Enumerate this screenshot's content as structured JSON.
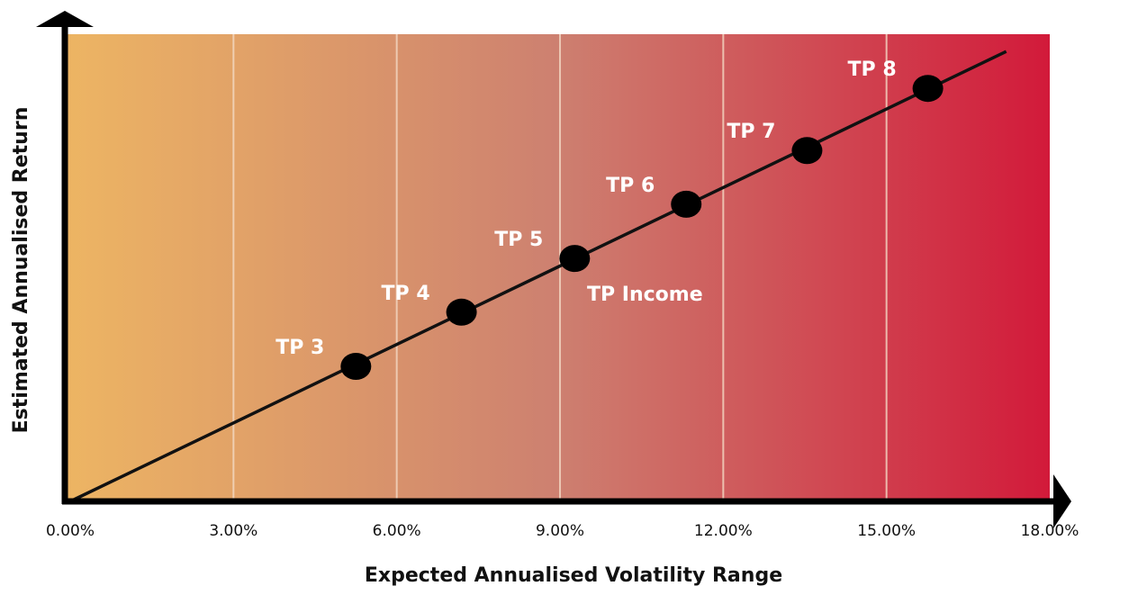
{
  "chart_data": {
    "type": "scatter",
    "x_label": "Expected Annualised Volatility Range",
    "y_label": "Estimated Annualised Return",
    "labels": [
      "TP 3",
      "TP 4",
      "TP 5",
      "TP 6",
      "TP 7",
      "TP 8"
    ],
    "x": [
      5.25,
      7.19,
      9.27,
      11.32,
      13.54,
      15.76
    ],
    "values": [
      28.9,
      40.5,
      52.0,
      63.6,
      75.1,
      88.4
    ],
    "color": "#000000",
    "annotation": "TP Income",
    "trend_line": {
      "x": [
        0,
        17.2
      ],
      "values": [
        0,
        96.3
      ]
    },
    "xlim": [
      0,
      18
    ],
    "ylim": [
      0,
      100
    ],
    "xticks": [
      {
        "value": 0,
        "label": "0.00%"
      },
      {
        "value": 3,
        "label": "3.00%"
      },
      {
        "value": 6,
        "label": "6.00%"
      },
      {
        "value": 9,
        "label": "9.00%"
      },
      {
        "value": 12,
        "label": "12.00%"
      },
      {
        "value": 15,
        "label": "15.00%"
      },
      {
        "value": 18,
        "label": "18.00%"
      }
    ],
    "grid": true
  }
}
